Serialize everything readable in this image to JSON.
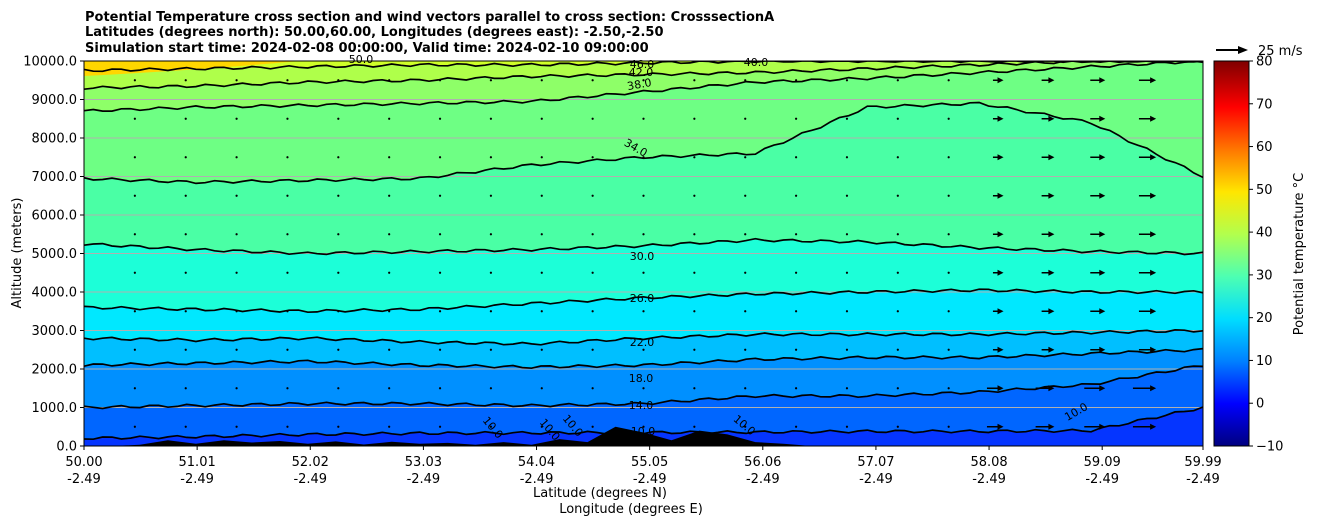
{
  "chart_data": {
    "type": "heatmap",
    "title_lines": [
      "Potential Temperature cross section and wind vectors parallel to cross section: CrosssectionA",
      "Latitudes (degrees north): 50.00,60.00, Longitudes (degrees east): -2.50,-2.50",
      "Simulation start time: 2024-02-08 00:00:00, Valid time: 2024-02-10 09:00:00"
    ],
    "xlabel_lines": [
      "Latitude (degrees N)",
      "Longitude (degrees E)"
    ],
    "ylabel": "Altitude (meters)",
    "colorbar_label": "Potential temperature °C",
    "quiver_key_label": "25 m/s",
    "x_range": [
      50.0,
      59.99
    ],
    "x_ticks": [
      50.0,
      51.01,
      52.02,
      53.03,
      54.04,
      55.05,
      56.06,
      57.07,
      58.08,
      59.09,
      59.99
    ],
    "x_tick_labels": [
      "50.00",
      "51.01",
      "52.02",
      "53.03",
      "54.04",
      "55.05",
      "56.06",
      "57.07",
      "58.08",
      "59.09",
      "59.99"
    ],
    "x_tick_sublabel": "-2.49",
    "y_range": [
      0,
      10000
    ],
    "y_ticks": [
      0,
      1000,
      2000,
      3000,
      4000,
      5000,
      6000,
      7000,
      8000,
      9000,
      10000
    ],
    "y_tick_labels": [
      "0.0",
      "1000.0",
      "2000.0",
      "3000.0",
      "4000.0",
      "5000.0",
      "6000.0",
      "7000.0",
      "8000.0",
      "9000.0",
      "10000.0"
    ],
    "grid": "horizontal",
    "colormap": "jet",
    "colorbar_range": [
      -10,
      80
    ],
    "colorbar_ticks": [
      -10,
      0,
      10,
      20,
      30,
      40,
      50,
      60,
      70,
      80
    ],
    "colorbar_tick_labels": [
      "−10",
      "0",
      "10",
      "20",
      "30",
      "40",
      "50",
      "60",
      "70",
      "80"
    ],
    "field_colors": {
      "6": "#0535ff",
      "10": "#0066ff",
      "14": "#0090ff",
      "18": "#00bfff",
      "22": "#00e8ff",
      "26": "#1cffd8",
      "30": "#4affa5",
      "34": "#6eff84",
      "38": "#8eff68",
      "42": "#afff4a",
      "46": "#cfff28",
      "50": "#ffd600"
    },
    "contour_levels": [
      10.0,
      14.0,
      18.0,
      22.0,
      26.0,
      30.0,
      34.0,
      38.0,
      42.0,
      46.0
    ],
    "contour_lines": [
      {
        "level": 10.0,
        "altitude_m": [
          200,
          240,
          300,
          330,
          340,
          350,
          360,
          380,
          380,
          400,
          1000
        ]
      },
      {
        "level": 14.0,
        "altitude_m": [
          1000,
          1050,
          1100,
          1100,
          1050,
          1100,
          1300,
          1300,
          1400,
          1600,
          2100
        ]
      },
      {
        "level": 18.0,
        "altitude_m": [
          2100,
          2150,
          2200,
          2100,
          2050,
          2100,
          2250,
          2300,
          2300,
          2400,
          2500
        ]
      },
      {
        "level": 22.0,
        "altitude_m": [
          2800,
          2750,
          2800,
          2700,
          2650,
          2800,
          2900,
          2900,
          2900,
          2950,
          3000
        ]
      },
      {
        "level": 26.0,
        "altitude_m": [
          3600,
          3550,
          3500,
          3550,
          3700,
          3850,
          3950,
          4000,
          4050,
          4000,
          4000
        ]
      },
      {
        "level": 30.0,
        "altitude_m": [
          5250,
          5100,
          5000,
          5050,
          5100,
          5200,
          5350,
          5300,
          5150,
          5050,
          5000
        ]
      },
      {
        "level": 34.0,
        "altitude_m": [
          6950,
          6850,
          6900,
          6950,
          7300,
          7500,
          7600,
          8800,
          8900,
          8400,
          7000
        ]
      },
      {
        "level": 38.0,
        "altitude_m": [
          8700,
          8800,
          8850,
          8900,
          8950,
          9200,
          9450,
          9550,
          9700,
          9850,
          10000
        ]
      },
      {
        "level": 42.0,
        "altitude_m": [
          9300,
          9350,
          9450,
          9500,
          9600,
          9650,
          9700,
          9800,
          9900,
          10000,
          10000
        ]
      },
      {
        "level": 46.0,
        "altitude_m": [
          9750,
          9800,
          9850,
          9900,
          9900,
          9950,
          10000,
          10000,
          10000,
          10000,
          10000
        ]
      }
    ],
    "contour_labels": [
      "10.0",
      "14.0",
      "18.0",
      "22.0",
      "26.0",
      "30.0",
      "34.0",
      "38.0",
      "42.0",
      "46.0",
      "50.0",
      "40.0",
      "10.0",
      "10.0",
      "10.0",
      "10.0",
      "10.0"
    ],
    "terrain_altitude_m": [
      0,
      0,
      30,
      150,
      60,
      150,
      90,
      130,
      60,
      120,
      40,
      110,
      60,
      80,
      30,
      100,
      30,
      180,
      100,
      500,
      350,
      150,
      400,
      300,
      100,
      60,
      0,
      0,
      0,
      0,
      0,
      0,
      0,
      0,
      0,
      0,
      0,
      0,
      0,
      0,
      0
    ]
  }
}
